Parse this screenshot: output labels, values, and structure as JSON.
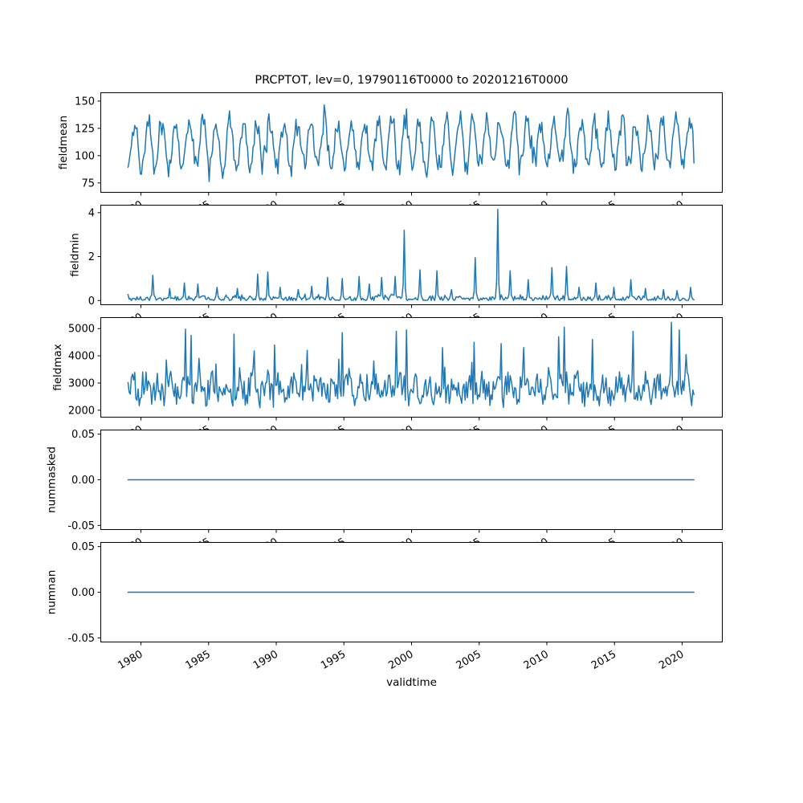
{
  "figure": {
    "title": "PRCPTOT, lev=0, 19790116T0000 to 20201216T0000",
    "xlabel": "validtime",
    "line_color": "#1f77b4",
    "axis_color": "#000000",
    "background_color": "#ffffff",
    "xlim": [
      1977.0,
      2023.0
    ],
    "x_ticks": [
      1980,
      1985,
      1990,
      1995,
      2000,
      2005,
      2010,
      2015,
      2020
    ],
    "x_ticklabels": [
      "1980",
      "1985",
      "1990",
      "1995",
      "2000",
      "2005",
      "2010",
      "2015",
      "2020"
    ],
    "x_tick_rotation_deg": 30,
    "x_start": 1979.0417,
    "x_end": 2020.9583,
    "points_per_year": 12
  },
  "chart_data": [
    {
      "type": "line",
      "name": "fieldmean",
      "ylabel": "fieldmean",
      "ylim": [
        66,
        158
      ],
      "ytick_vals": [
        75,
        100,
        125,
        150
      ],
      "ytick_labels": [
        "75",
        "100",
        "125",
        "150"
      ],
      "gen": {
        "kind": "seasonal",
        "seed": 11,
        "base": 110,
        "amp": 21,
        "amp_jitter": 8,
        "phase": 0.3,
        "noise": 7,
        "peak_chance": 0.03,
        "peak_boost": 13,
        "clip": [
          71,
          153
        ]
      }
    },
    {
      "type": "line",
      "name": "fieldmin",
      "ylabel": "fieldmin",
      "ylim": [
        -0.21,
        4.36
      ],
      "ytick_vals": [
        0,
        2,
        4
      ],
      "ytick_labels": [
        "0",
        "2",
        "4"
      ],
      "gen": {
        "kind": "spiky",
        "seed": 7,
        "scale": 0.3,
        "clip": [
          0,
          4.2
        ],
        "spikes": [
          [
            1980.9,
            1.15
          ],
          [
            1982.1,
            0.55
          ],
          [
            1983.2,
            0.8
          ],
          [
            1984.2,
            0.75
          ],
          [
            1985.6,
            0.6
          ],
          [
            1987.1,
            0.55
          ],
          [
            1988.6,
            1.2
          ],
          [
            1989.4,
            1.3
          ],
          [
            1990.3,
            0.6
          ],
          [
            1991.6,
            0.5
          ],
          [
            1992.6,
            0.65
          ],
          [
            1993.8,
            1.05
          ],
          [
            1994.9,
            1.0
          ],
          [
            1996.1,
            1.1
          ],
          [
            1996.9,
            0.75
          ],
          [
            1997.8,
            1.05
          ],
          [
            1998.8,
            1.1
          ],
          [
            1999.5,
            3.2
          ],
          [
            2000.6,
            1.4
          ],
          [
            2001.9,
            1.35
          ],
          [
            2003.0,
            0.5
          ],
          [
            2004.7,
            1.95
          ],
          [
            2006.35,
            4.15
          ],
          [
            2007.3,
            1.35
          ],
          [
            2008.6,
            0.95
          ],
          [
            2010.4,
            1.5
          ],
          [
            2011.5,
            1.55
          ],
          [
            2012.4,
            0.6
          ],
          [
            2013.6,
            0.8
          ],
          [
            2015.0,
            0.6
          ],
          [
            2016.2,
            0.95
          ],
          [
            2017.3,
            0.55
          ],
          [
            2018.6,
            0.5
          ],
          [
            2019.6,
            0.45
          ],
          [
            2020.6,
            0.6
          ]
        ]
      }
    },
    {
      "type": "line",
      "name": "fieldmax",
      "ylabel": "fieldmax",
      "ylim": [
        1730,
        5420
      ],
      "ytick_vals": [
        2000,
        3000,
        4000,
        5000
      ],
      "ytick_labels": [
        "2000",
        "3000",
        "4000",
        "5000"
      ],
      "gen": {
        "kind": "noisy",
        "seed": 5,
        "base": 2780,
        "season": 220,
        "noise": 480,
        "peak_chance": 0.05,
        "peak_boost": 1100,
        "clip": [
          1920,
          5230
        ],
        "spikes": [
          [
            1983.3,
            4980
          ],
          [
            1983.7,
            4750
          ],
          [
            1986.9,
            4800
          ],
          [
            1989.9,
            4400
          ],
          [
            1992.3,
            4200
          ],
          [
            1994.9,
            4850
          ],
          [
            1998.9,
            4900
          ],
          [
            1999.6,
            4950
          ],
          [
            2002.3,
            4300
          ],
          [
            2004.6,
            4500
          ],
          [
            2006.6,
            4450
          ],
          [
            2008.3,
            4300
          ],
          [
            2010.9,
            4700
          ],
          [
            2011.3,
            5050
          ],
          [
            2013.4,
            4600
          ],
          [
            2016.4,
            4900
          ],
          [
            2019.2,
            5230
          ],
          [
            2019.8,
            4950
          ]
        ]
      }
    },
    {
      "type": "line",
      "name": "nummasked",
      "ylabel": "nummasked",
      "ylim": [
        -0.055,
        0.055
      ],
      "ytick_vals": [
        -0.05,
        0.0,
        0.05
      ],
      "ytick_labels": [
        "-0.05",
        "0.00",
        "0.05"
      ],
      "gen": {
        "kind": "const",
        "value": 0
      }
    },
    {
      "type": "line",
      "name": "numnan",
      "ylabel": "numnan",
      "ylim": [
        -0.055,
        0.055
      ],
      "ytick_vals": [
        -0.05,
        0.0,
        0.05
      ],
      "ytick_labels": [
        "-0.05",
        "0.00",
        "0.05"
      ],
      "gen": {
        "kind": "const",
        "value": 0
      }
    }
  ]
}
